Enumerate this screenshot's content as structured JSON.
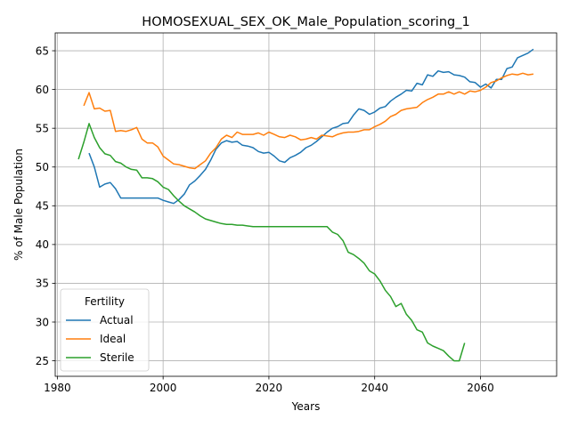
{
  "chart_data": {
    "type": "line",
    "title": "HOMOSEXUAL_SEX_OK_Male_Population_scoring_1",
    "xlabel": "Years",
    "ylabel": "% of Male Population",
    "xlim": [
      1984,
      2074
    ],
    "ylim": [
      23.0,
      67.3
    ],
    "xticks": [
      1980,
      2000,
      2020,
      2040,
      2060
    ],
    "yticks": [
      25,
      30,
      35,
      40,
      45,
      50,
      55,
      60,
      65
    ],
    "grid": true,
    "legend": {
      "title": "Fertility",
      "placement": "lower-left"
    },
    "series": [
      {
        "name": "Actual",
        "color": "#1f77b4",
        "x": [
          1986,
          1987,
          1988,
          1989,
          1990,
          1991,
          1992,
          1993,
          1994,
          1995,
          1996,
          1997,
          1998,
          1999,
          2000,
          2001,
          2002,
          2003,
          2004,
          2005,
          2006,
          2007,
          2008,
          2009,
          2010,
          2011,
          2012,
          2013,
          2014,
          2015,
          2016,
          2017,
          2018,
          2019,
          2020,
          2021,
          2022,
          2023,
          2024,
          2025,
          2026,
          2027,
          2028,
          2029,
          2030,
          2031,
          2032,
          2033,
          2034,
          2035,
          2036,
          2037,
          2038,
          2039,
          2040,
          2041,
          2042,
          2043,
          2044,
          2045,
          2046,
          2047,
          2048,
          2049,
          2050,
          2051,
          2052,
          2053,
          2054,
          2055,
          2056,
          2057,
          2058,
          2059,
          2060,
          2061,
          2062,
          2063,
          2064,
          2065,
          2066,
          2067,
          2068,
          2069,
          2070
        ],
        "values": [
          51.8,
          50.0,
          47.4,
          47.8,
          48.0,
          47.2,
          46.0,
          46.0,
          46.0,
          46.0,
          46.0,
          46.0,
          46.0,
          46.0,
          45.7,
          45.5,
          45.3,
          45.8,
          46.5,
          47.7,
          48.2,
          48.9,
          49.7,
          50.9,
          52.3,
          53.1,
          53.4,
          53.2,
          53.3,
          52.8,
          52.7,
          52.5,
          52.0,
          51.8,
          51.9,
          51.4,
          50.8,
          50.6,
          51.2,
          51.5,
          51.9,
          52.5,
          52.8,
          53.3,
          53.9,
          54.5,
          55.0,
          55.2,
          55.6,
          55.7,
          56.7,
          57.5,
          57.3,
          56.8,
          57.1,
          57.6,
          57.8,
          58.5,
          59.0,
          59.4,
          59.9,
          59.8,
          60.8,
          60.6,
          61.9,
          61.7,
          62.4,
          62.2,
          62.3,
          61.9,
          61.8,
          61.6,
          61.0,
          60.9,
          60.3,
          60.7,
          60.2,
          61.3,
          61.3,
          62.7,
          62.9,
          64.1,
          64.4,
          64.7,
          65.2
        ]
      },
      {
        "name": "Ideal",
        "color": "#ff7f0e",
        "x": [
          1985,
          1986,
          1987,
          1988,
          1989,
          1990,
          1991,
          1992,
          1993,
          1994,
          1995,
          1996,
          1997,
          1998,
          1999,
          2000,
          2001,
          2002,
          2003,
          2004,
          2005,
          2006,
          2007,
          2008,
          2009,
          2010,
          2011,
          2012,
          2013,
          2014,
          2015,
          2016,
          2017,
          2018,
          2019,
          2020,
          2021,
          2022,
          2023,
          2024,
          2025,
          2026,
          2027,
          2028,
          2029,
          2030,
          2031,
          2032,
          2033,
          2034,
          2035,
          2036,
          2037,
          2038,
          2039,
          2040,
          2041,
          2042,
          2043,
          2044,
          2045,
          2046,
          2047,
          2048,
          2049,
          2050,
          2051,
          2052,
          2053,
          2054,
          2055,
          2056,
          2057,
          2058,
          2059,
          2060,
          2061,
          2062,
          2063,
          2064,
          2065,
          2066,
          2067,
          2068,
          2069,
          2070
        ],
        "values": [
          57.9,
          59.6,
          57.5,
          57.6,
          57.2,
          57.3,
          54.6,
          54.7,
          54.6,
          54.8,
          55.1,
          53.6,
          53.1,
          53.1,
          52.6,
          51.4,
          50.9,
          50.4,
          50.3,
          50.1,
          49.9,
          49.8,
          50.3,
          50.8,
          51.8,
          52.5,
          53.6,
          54.1,
          53.8,
          54.5,
          54.2,
          54.2,
          54.2,
          54.4,
          54.1,
          54.5,
          54.2,
          53.9,
          53.8,
          54.1,
          53.9,
          53.5,
          53.6,
          53.8,
          53.6,
          54.1,
          54.0,
          53.9,
          54.2,
          54.4,
          54.5,
          54.5,
          54.6,
          54.8,
          54.8,
          55.2,
          55.5,
          55.9,
          56.5,
          56.8,
          57.3,
          57.5,
          57.6,
          57.7,
          58.3,
          58.7,
          59.0,
          59.4,
          59.4,
          59.7,
          59.4,
          59.7,
          59.4,
          59.8,
          59.7,
          59.9,
          60.3,
          60.9,
          61.1,
          61.5,
          61.8,
          62.0,
          61.9,
          62.1,
          61.9,
          62.0
        ]
      },
      {
        "name": "Sterile",
        "color": "#2ca02c",
        "x": [
          1984,
          1985,
          1986,
          1987,
          1988,
          1989,
          1990,
          1991,
          1992,
          1993,
          1994,
          1995,
          1996,
          1997,
          1998,
          1999,
          2000,
          2001,
          2002,
          2003,
          2004,
          2005,
          2006,
          2007,
          2008,
          2009,
          2010,
          2011,
          2012,
          2013,
          2014,
          2015,
          2016,
          2017,
          2018,
          2019,
          2020,
          2021,
          2022,
          2023,
          2024,
          2025,
          2026,
          2027,
          2028,
          2029,
          2030,
          2031,
          2032,
          2033,
          2034,
          2035,
          2036,
          2037,
          2038,
          2039,
          2040,
          2041,
          2042,
          2043,
          2044,
          2045,
          2046,
          2047,
          2048,
          2049,
          2050,
          2051,
          2052,
          2053,
          2054,
          2055,
          2056,
          2057
        ],
        "values": [
          51.0,
          53.2,
          55.6,
          53.8,
          52.5,
          51.7,
          51.5,
          50.7,
          50.5,
          50.0,
          49.7,
          49.6,
          48.6,
          48.6,
          48.5,
          48.1,
          47.4,
          47.1,
          46.3,
          45.6,
          45.0,
          44.6,
          44.2,
          43.7,
          43.3,
          43.1,
          42.9,
          42.7,
          42.6,
          42.6,
          42.5,
          42.5,
          42.4,
          42.3,
          42.3,
          42.3,
          42.3,
          42.3,
          42.3,
          42.3,
          42.3,
          42.3,
          42.3,
          42.3,
          42.3,
          42.3,
          42.3,
          42.3,
          41.6,
          41.3,
          40.5,
          39.0,
          38.7,
          38.2,
          37.6,
          36.6,
          36.2,
          35.3,
          34.1,
          33.3,
          32.0,
          32.4,
          31.0,
          30.2,
          29.0,
          28.7,
          27.3,
          26.9,
          26.6,
          26.3,
          25.6,
          25.0,
          25.0,
          27.3
        ]
      }
    ]
  }
}
